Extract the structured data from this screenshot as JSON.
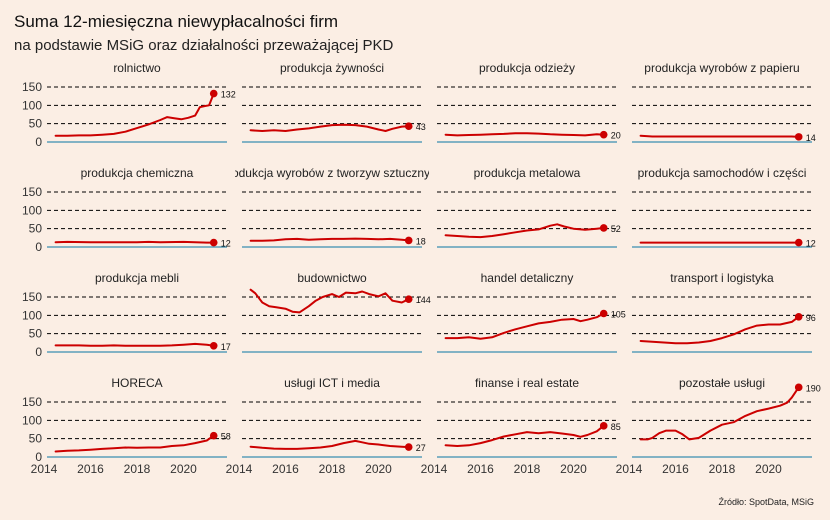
{
  "chart_data": {
    "type": "line",
    "title": "Suma 12-miesięczna niewypłacalności firm",
    "subtitle": "na podstawie MSiG oraz działalności przeważającej PKD",
    "source": "Źródło: SpotData, MSiG",
    "xlim": [
      2014,
      2022
    ],
    "ylim": [
      0,
      150
    ],
    "x_ticks": [
      "2014",
      "2016",
      "2018",
      "2020"
    ],
    "y_ticks": [
      "0",
      "50",
      "100",
      "150"
    ],
    "grid": "horizontal dashed",
    "colors": {
      "line": "#cc0000",
      "baseline": "#3a8fb0",
      "grid": "#000000",
      "background": "#fbeee4"
    },
    "panels": [
      {
        "title": "rolnictwo",
        "last_label": "132",
        "points": [
          [
            2014.5,
            17
          ],
          [
            2015,
            17
          ],
          [
            2015.5,
            18
          ],
          [
            2016,
            18
          ],
          [
            2016.5,
            20
          ],
          [
            2017,
            22
          ],
          [
            2017.5,
            28
          ],
          [
            2018,
            38
          ],
          [
            2018.5,
            48
          ],
          [
            2019,
            60
          ],
          [
            2019.3,
            68
          ],
          [
            2019.6,
            65
          ],
          [
            2019.9,
            62
          ],
          [
            2020.2,
            66
          ],
          [
            2020.5,
            72
          ],
          [
            2020.7,
            95
          ],
          [
            2020.9,
            98
          ],
          [
            2021.1,
            100
          ],
          [
            2021.3,
            132
          ]
        ]
      },
      {
        "title": "produkcja żywności",
        "last_label": "43",
        "points": [
          [
            2014.5,
            32
          ],
          [
            2015,
            30
          ],
          [
            2015.5,
            32
          ],
          [
            2016,
            30
          ],
          [
            2016.5,
            34
          ],
          [
            2017,
            37
          ],
          [
            2017.5,
            42
          ],
          [
            2018,
            46
          ],
          [
            2018.5,
            47
          ],
          [
            2019,
            46
          ],
          [
            2019.5,
            42
          ],
          [
            2020,
            34
          ],
          [
            2020.3,
            30
          ],
          [
            2020.6,
            36
          ],
          [
            2021,
            42
          ],
          [
            2021.3,
            43
          ]
        ]
      },
      {
        "title": "produkcja odzieży",
        "last_label": "20",
        "points": [
          [
            2014.5,
            20
          ],
          [
            2015,
            18
          ],
          [
            2015.5,
            19
          ],
          [
            2016,
            20
          ],
          [
            2016.5,
            21
          ],
          [
            2017,
            22
          ],
          [
            2017.5,
            24
          ],
          [
            2018,
            24
          ],
          [
            2018.5,
            23
          ],
          [
            2019,
            21
          ],
          [
            2019.5,
            20
          ],
          [
            2020,
            19
          ],
          [
            2020.5,
            18
          ],
          [
            2021,
            21
          ],
          [
            2021.3,
            20
          ]
        ]
      },
      {
        "title": "produkcja wyrobów z papieru",
        "last_label": "14",
        "points": [
          [
            2014.5,
            17
          ],
          [
            2015,
            15
          ],
          [
            2016,
            15
          ],
          [
            2017,
            15
          ],
          [
            2018,
            15
          ],
          [
            2019,
            15
          ],
          [
            2020,
            15
          ],
          [
            2021,
            15
          ],
          [
            2021.3,
            14
          ]
        ]
      },
      {
        "title": "produkcja chemiczna",
        "last_label": "12",
        "points": [
          [
            2014.5,
            13
          ],
          [
            2015,
            14
          ],
          [
            2016,
            13
          ],
          [
            2017,
            13
          ],
          [
            2018,
            13
          ],
          [
            2018.5,
            14
          ],
          [
            2019,
            13
          ],
          [
            2020,
            14
          ],
          [
            2020.5,
            13
          ],
          [
            2021,
            12
          ],
          [
            2021.3,
            12
          ]
        ]
      },
      {
        "title": "produkcja wyrobów z tworzyw sztucznych",
        "last_label": "18",
        "points": [
          [
            2014.5,
            17
          ],
          [
            2015,
            17
          ],
          [
            2015.5,
            18
          ],
          [
            2016,
            21
          ],
          [
            2016.5,
            22
          ],
          [
            2017,
            20
          ],
          [
            2017.5,
            21
          ],
          [
            2018,
            22
          ],
          [
            2018.5,
            22
          ],
          [
            2019,
            23
          ],
          [
            2019.5,
            22
          ],
          [
            2020,
            21
          ],
          [
            2020.5,
            22
          ],
          [
            2021,
            20
          ],
          [
            2021.3,
            18
          ]
        ]
      },
      {
        "title": "produkcja metalowa",
        "last_label": "52",
        "points": [
          [
            2014.5,
            32
          ],
          [
            2015,
            30
          ],
          [
            2015.5,
            28
          ],
          [
            2016,
            27
          ],
          [
            2016.5,
            30
          ],
          [
            2017,
            35
          ],
          [
            2017.5,
            40
          ],
          [
            2018,
            45
          ],
          [
            2018.5,
            48
          ],
          [
            2019,
            58
          ],
          [
            2019.3,
            62
          ],
          [
            2019.6,
            56
          ],
          [
            2020,
            50
          ],
          [
            2020.5,
            47
          ],
          [
            2021,
            50
          ],
          [
            2021.3,
            52
          ]
        ]
      },
      {
        "title": "produkcja samochodów i części",
        "last_label": "12",
        "points": [
          [
            2014.5,
            12
          ],
          [
            2015,
            12
          ],
          [
            2016,
            12
          ],
          [
            2017,
            12
          ],
          [
            2018,
            12
          ],
          [
            2019,
            12
          ],
          [
            2020,
            12
          ],
          [
            2021,
            12
          ],
          [
            2021.3,
            12
          ]
        ]
      },
      {
        "title": "produkcja mebli",
        "last_label": "17",
        "points": [
          [
            2014.5,
            18
          ],
          [
            2015,
            18
          ],
          [
            2015.5,
            18
          ],
          [
            2016,
            17
          ],
          [
            2016.5,
            17
          ],
          [
            2017,
            18
          ],
          [
            2017.5,
            17
          ],
          [
            2018,
            17
          ],
          [
            2018.5,
            17
          ],
          [
            2019,
            17
          ],
          [
            2019.5,
            18
          ],
          [
            2020,
            20
          ],
          [
            2020.5,
            22
          ],
          [
            2021,
            20
          ],
          [
            2021.3,
            17
          ]
        ]
      },
      {
        "title": "budownictwo",
        "last_label": "144",
        "points": [
          [
            2014.5,
            170
          ],
          [
            2014.7,
            160
          ],
          [
            2015,
            135
          ],
          [
            2015.3,
            125
          ],
          [
            2015.6,
            122
          ],
          [
            2016,
            118
          ],
          [
            2016.3,
            110
          ],
          [
            2016.6,
            108
          ],
          [
            2017,
            125
          ],
          [
            2017.3,
            140
          ],
          [
            2017.6,
            150
          ],
          [
            2018,
            158
          ],
          [
            2018.3,
            150
          ],
          [
            2018.6,
            162
          ],
          [
            2019,
            160
          ],
          [
            2019.3,
            165
          ],
          [
            2019.6,
            158
          ],
          [
            2020,
            152
          ],
          [
            2020.3,
            160
          ],
          [
            2020.6,
            140
          ],
          [
            2021,
            135
          ],
          [
            2021.3,
            144
          ]
        ]
      },
      {
        "title": "handel detaliczny",
        "last_label": "105",
        "points": [
          [
            2014.5,
            38
          ],
          [
            2015,
            38
          ],
          [
            2015.5,
            40
          ],
          [
            2016,
            36
          ],
          [
            2016.5,
            40
          ],
          [
            2017,
            52
          ],
          [
            2017.5,
            62
          ],
          [
            2018,
            70
          ],
          [
            2018.5,
            78
          ],
          [
            2019,
            82
          ],
          [
            2019.5,
            88
          ],
          [
            2020,
            90
          ],
          [
            2020.3,
            84
          ],
          [
            2020.6,
            88
          ],
          [
            2021,
            95
          ],
          [
            2021.3,
            105
          ]
        ]
      },
      {
        "title": "transport i logistyka",
        "last_label": "96",
        "points": [
          [
            2014.5,
            30
          ],
          [
            2015,
            28
          ],
          [
            2015.5,
            26
          ],
          [
            2016,
            24
          ],
          [
            2016.5,
            24
          ],
          [
            2017,
            26
          ],
          [
            2017.5,
            30
          ],
          [
            2018,
            38
          ],
          [
            2018.5,
            48
          ],
          [
            2019,
            62
          ],
          [
            2019.5,
            72
          ],
          [
            2020,
            75
          ],
          [
            2020.5,
            75
          ],
          [
            2021,
            82
          ],
          [
            2021.3,
            96
          ]
        ]
      },
      {
        "title": "HORECA",
        "last_label": "58",
        "points": [
          [
            2014.5,
            15
          ],
          [
            2015,
            17
          ],
          [
            2015.5,
            18
          ],
          [
            2016,
            20
          ],
          [
            2016.5,
            22
          ],
          [
            2017,
            24
          ],
          [
            2017.5,
            26
          ],
          [
            2018,
            25
          ],
          [
            2018.5,
            26
          ],
          [
            2019,
            26
          ],
          [
            2019.5,
            30
          ],
          [
            2020,
            32
          ],
          [
            2020.5,
            38
          ],
          [
            2021,
            45
          ],
          [
            2021.3,
            58
          ]
        ]
      },
      {
        "title": "usługi ICT i media",
        "last_label": "27",
        "points": [
          [
            2014.5,
            28
          ],
          [
            2015,
            25
          ],
          [
            2015.5,
            23
          ],
          [
            2016,
            22
          ],
          [
            2016.5,
            22
          ],
          [
            2017,
            24
          ],
          [
            2017.5,
            26
          ],
          [
            2018,
            30
          ],
          [
            2018.5,
            38
          ],
          [
            2019,
            44
          ],
          [
            2019.3,
            40
          ],
          [
            2019.6,
            36
          ],
          [
            2020,
            34
          ],
          [
            2020.5,
            30
          ],
          [
            2021,
            28
          ],
          [
            2021.3,
            27
          ]
        ]
      },
      {
        "title": "finanse i real estate",
        "last_label": "85",
        "points": [
          [
            2014.5,
            32
          ],
          [
            2015,
            30
          ],
          [
            2015.5,
            32
          ],
          [
            2016,
            38
          ],
          [
            2016.5,
            46
          ],
          [
            2017,
            56
          ],
          [
            2017.5,
            62
          ],
          [
            2018,
            68
          ],
          [
            2018.5,
            65
          ],
          [
            2019,
            68
          ],
          [
            2019.5,
            64
          ],
          [
            2020,
            60
          ],
          [
            2020.3,
            55
          ],
          [
            2020.6,
            60
          ],
          [
            2021,
            70
          ],
          [
            2021.3,
            85
          ]
        ]
      },
      {
        "title": "pozostałe usługi",
        "last_label": "190",
        "points": [
          [
            2014.5,
            48
          ],
          [
            2014.8,
            48
          ],
          [
            2015,
            52
          ],
          [
            2015.3,
            65
          ],
          [
            2015.6,
            72
          ],
          [
            2016,
            72
          ],
          [
            2016.3,
            62
          ],
          [
            2016.6,
            48
          ],
          [
            2017,
            52
          ],
          [
            2017.5,
            72
          ],
          [
            2018,
            88
          ],
          [
            2018.5,
            95
          ],
          [
            2019,
            112
          ],
          [
            2019.5,
            125
          ],
          [
            2020,
            132
          ],
          [
            2020.5,
            140
          ],
          [
            2020.8,
            148
          ],
          [
            2021,
            162
          ],
          [
            2021.3,
            190
          ]
        ]
      }
    ]
  }
}
